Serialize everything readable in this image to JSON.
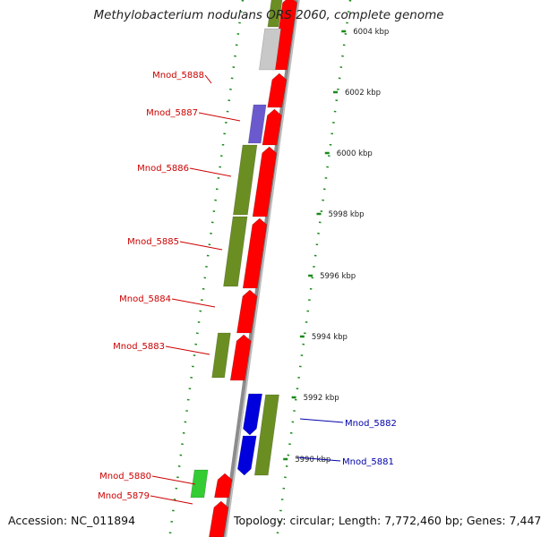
{
  "title": "Methylobacterium nodulans ORS 2060, complete genome",
  "accession": "Accession: NC_011894",
  "topology": "Topology: circular; Length: 7,772,460 bp; Genes: 7,447",
  "colors": {
    "backbone": "#8c8c8c",
    "forward_gene": "#ff0000",
    "reverse_gene": "#0000dd",
    "olive_feature": "#6b8e23",
    "grey_feature": "#c8c8c8",
    "purple_feature": "#6a5acd",
    "light_green_feature": "#33cc33",
    "tick_green": "#1a8a1a",
    "label_forward": "#cc0000",
    "label_reverse": "#0000aa"
  },
  "position_ticks": [
    "6004 kbp",
    "6002 kbp",
    "6000 kbp",
    "5998 kbp",
    "5996 kbp",
    "5994 kbp",
    "5992 kbp",
    "5990 kbp"
  ],
  "gene_labels": [
    {
      "name": "Mnod_5888",
      "strand": "forward"
    },
    {
      "name": "Mnod_5887",
      "strand": "forward"
    },
    {
      "name": "Mnod_5886",
      "strand": "forward"
    },
    {
      "name": "Mnod_5885",
      "strand": "forward"
    },
    {
      "name": "Mnod_5884",
      "strand": "forward"
    },
    {
      "name": "Mnod_5883",
      "strand": "forward"
    },
    {
      "name": "Mnod_5882",
      "strand": "reverse"
    },
    {
      "name": "Mnod_5881",
      "strand": "reverse"
    },
    {
      "name": "Mnod_5880",
      "strand": "forward"
    },
    {
      "name": "Mnod_5879",
      "strand": "forward"
    }
  ]
}
